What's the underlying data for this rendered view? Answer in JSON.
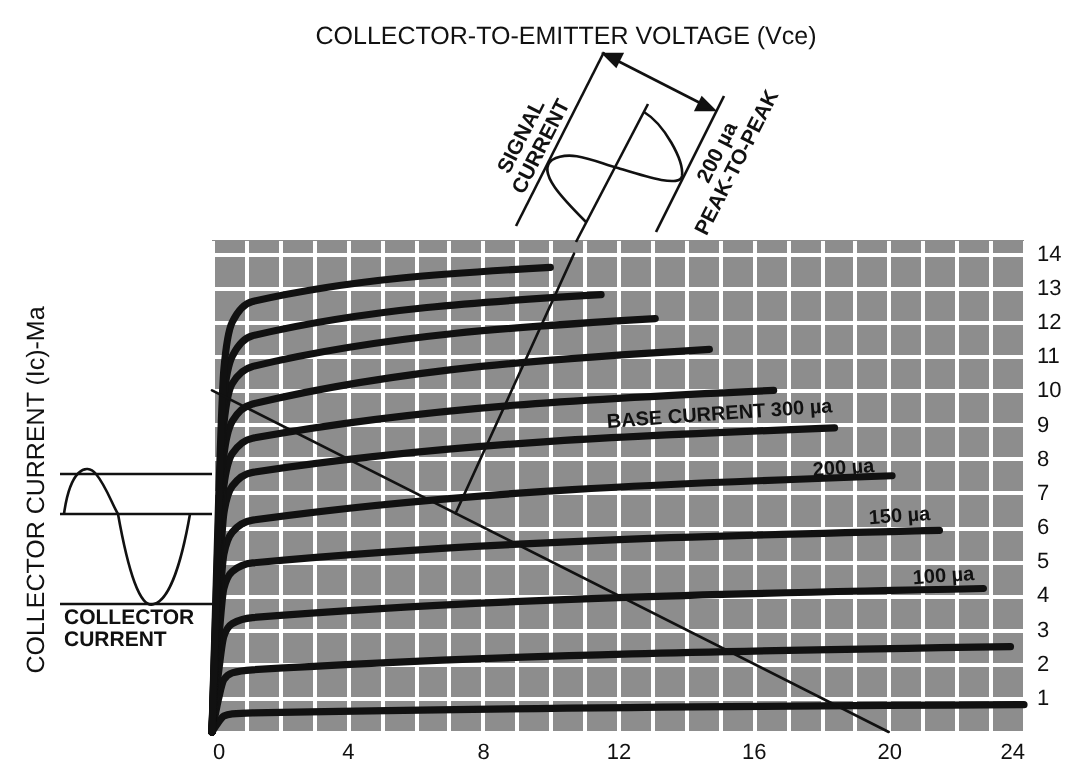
{
  "chart_data": {
    "type": "line",
    "xlim": [
      0,
      24
    ],
    "ylim": [
      0,
      14.4
    ],
    "xticks": [
      0,
      {
        "value": 1,
        "label": null
      },
      {
        "value": 2,
        "label": null
      },
      {
        "value": 3,
        "label": null
      },
      4,
      {
        "value": 5,
        "label": null
      },
      {
        "value": 6,
        "label": null
      },
      {
        "value": 7,
        "label": null
      },
      8,
      {
        "value": 9,
        "label": null
      },
      {
        "value": 10,
        "label": null
      },
      {
        "value": 11,
        "label": null
      },
      12,
      {
        "value": 13,
        "label": null
      },
      {
        "value": 14,
        "label": null
      },
      {
        "value": 15,
        "label": null
      },
      16,
      {
        "value": 17,
        "label": null
      },
      {
        "value": 18,
        "label": null
      },
      {
        "value": 19,
        "label": null
      },
      20,
      {
        "value": 21,
        "label": null
      },
      {
        "value": 22,
        "label": null
      },
      {
        "value": 23,
        "label": null
      },
      24
    ],
    "yticks": [
      {
        "value": 0,
        "label": null
      },
      1,
      2,
      3,
      4,
      5,
      6,
      7,
      8,
      9,
      10,
      11,
      12,
      13,
      14
    ],
    "grid": true,
    "marker": "none",
    "series": [
      {
        "color": "#111111",
        "x": [
          0,
          0.2,
          0.35,
          0.6,
          1.2,
          24
        ],
        "values": [
          0,
          0.3,
          0.47,
          0.53,
          0.56,
          0.8
        ]
      },
      {
        "color": "#111111",
        "x": [
          0,
          0.2,
          0.35,
          0.6,
          1.2,
          23.6
        ],
        "values": [
          0,
          1.0,
          1.53,
          1.73,
          1.82,
          2.5
        ]
      },
      {
        "color": "#111111",
        "x": [
          0,
          0.2,
          0.35,
          0.6,
          1.2,
          22.8
        ],
        "values": [
          0,
          1.8,
          2.8,
          3.17,
          3.35,
          4.2
        ]
      },
      {
        "color": "#111111",
        "x": [
          0,
          0.2,
          0.35,
          0.6,
          1.2,
          21.5
        ],
        "values": [
          0,
          2.7,
          4.2,
          4.7,
          4.95,
          5.9
        ]
      },
      {
        "color": "#111111",
        "x": [
          0,
          0.2,
          0.35,
          0.6,
          1.2,
          20.1
        ],
        "values": [
          0,
          3.4,
          5.2,
          5.85,
          6.2,
          7.5
        ]
      },
      {
        "color": "#111111",
        "x": [
          0,
          0.2,
          0.35,
          0.6,
          1.2,
          18.4
        ],
        "values": [
          0,
          4.1,
          6.4,
          7.2,
          7.6,
          8.9
        ]
      },
      {
        "color": "#111111",
        "x": [
          0,
          0.2,
          0.35,
          0.6,
          1.2,
          16.6
        ],
        "values": [
          0,
          4.7,
          7.2,
          8.15,
          8.6,
          10.0
        ]
      },
      {
        "color": "#111111",
        "x": [
          0,
          0.2,
          0.35,
          0.6,
          1.2,
          14.7
        ],
        "values": [
          0,
          5.2,
          8.1,
          9.1,
          9.6,
          11.2
        ]
      },
      {
        "color": "#111111",
        "x": [
          0,
          0.2,
          0.35,
          0.6,
          1.2,
          13.1
        ],
        "values": [
          0,
          5.8,
          9.0,
          10.2,
          10.7,
          12.1
        ]
      },
      {
        "color": "#111111",
        "x": [
          0,
          0.2,
          0.35,
          0.6,
          1.2,
          11.5
        ],
        "values": [
          0,
          6.3,
          9.8,
          11.0,
          11.6,
          12.8
        ]
      },
      {
        "color": "#111111",
        "x": [
          0,
          0.2,
          0.35,
          0.6,
          1.2,
          10.0
        ],
        "values": [
          0,
          6.9,
          10.6,
          12.0,
          12.6,
          13.6
        ]
      },
      {
        "color": "#111111",
        "x": [
          0,
          20
        ],
        "values": [
          10,
          0
        ]
      },
      {
        "color": "#111111",
        "x": [
          7.2,
          10.7
        ],
        "values": [
          6.4,
          14
        ]
      }
    ],
    "annotations": [
      "BASE CURRENT 300 µa",
      "200 µa",
      "150 µa",
      "100 µa",
      "COLLECTOR-TO-EMITTER VOLTAGE (Vce)",
      "COLLECTOR CURRENT (Ic)-Ma",
      "COLLECTOR CURRENT",
      "SIGNAL CURRENT",
      "200 µa PEAK-TO-PEAK"
    ]
  }
}
